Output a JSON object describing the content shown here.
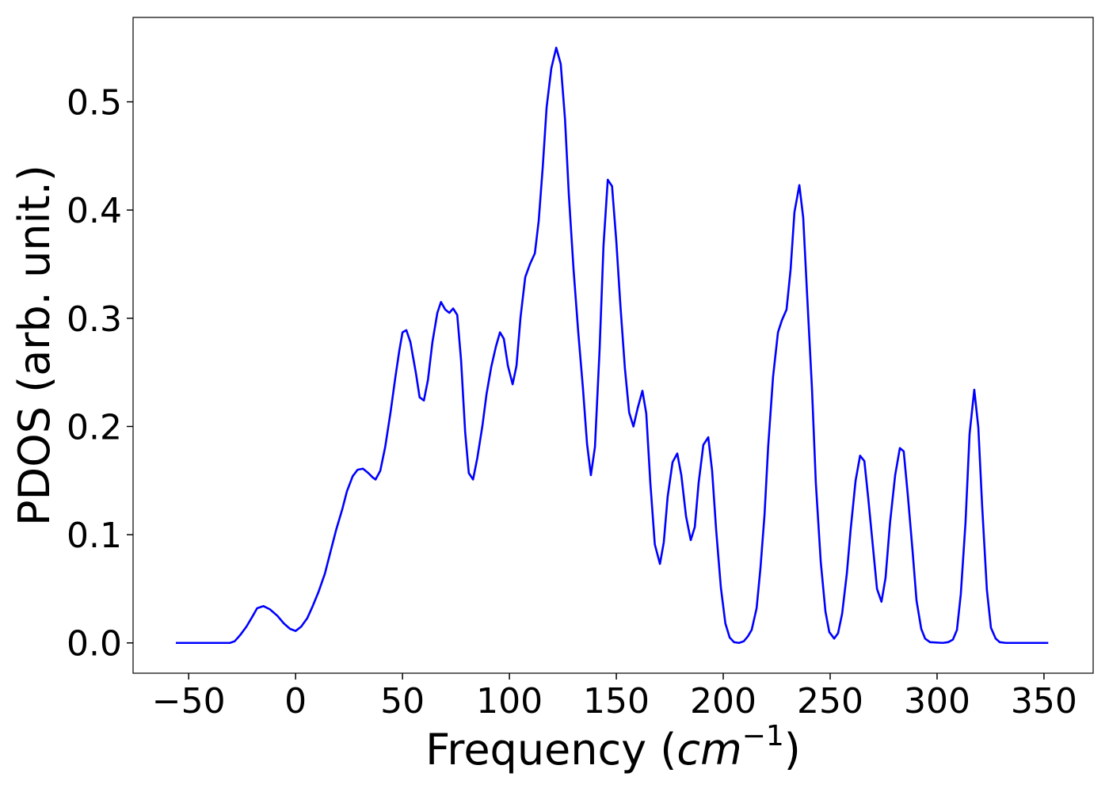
{
  "chart_data": {
    "type": "line",
    "xlabel": [
      "Frequency (",
      "cm",
      "−1",
      ")"
    ],
    "ylabel": "PDOS (arb. unit.)",
    "color": "#0000ff",
    "x": [
      -56,
      -30.7,
      -28.5,
      -26,
      -23,
      -20,
      -18,
      -15,
      -12,
      -8.5,
      -5.5,
      -2.6,
      0,
      2.6,
      5.5,
      8,
      10.7,
      13.7,
      16.3,
      18.9,
      21.9,
      24,
      26.7,
      29,
      31.5,
      34,
      36,
      37.4,
      39.6,
      41.9,
      44.4,
      46.7,
      48.5,
      50,
      51.8,
      53.7,
      56.3,
      58,
      60,
      61.9,
      64,
      66.3,
      68,
      70,
      71.9,
      73.7,
      75.6,
      77.4,
      79.3,
      81,
      83,
      85,
      87.4,
      89.3,
      91.5,
      93.7,
      95.6,
      97.4,
      99.3,
      101.5,
      103.3,
      105.2,
      107.4,
      109.6,
      111.9,
      113.7,
      115.6,
      117.4,
      119.6,
      121.9,
      124,
      126,
      127.8,
      130,
      132.2,
      134.4,
      136.3,
      138.1,
      140,
      142.2,
      144,
      146,
      148,
      150,
      151.9,
      154,
      156,
      158,
      160,
      162.2,
      164,
      165.9,
      168,
      170.4,
      172.2,
      174,
      176.3,
      178.5,
      180.4,
      182.6,
      184.8,
      186.7,
      188.5,
      190.7,
      193,
      194.8,
      196.7,
      198.9,
      201,
      203,
      205,
      207.4,
      209.6,
      211.5,
      213.3,
      215.6,
      217.4,
      219.3,
      221,
      223.3,
      225.6,
      227.4,
      229.6,
      231.5,
      233.3,
      235.6,
      237.4,
      239.3,
      241.5,
      243.3,
      245.6,
      247.8,
      249.6,
      251.9,
      253.7,
      255.6,
      257.8,
      259.6,
      261.9,
      264,
      266,
      267.8,
      270,
      271.9,
      274,
      275.9,
      278,
      280.4,
      282.6,
      284.4,
      286.3,
      288.5,
      290.4,
      292.6,
      294.4,
      296.7,
      302.6,
      305.2,
      307.4,
      309.3,
      311.1,
      313.3,
      315.2,
      317.4,
      319.3,
      321.1,
      323.3,
      325.2,
      327.4,
      329.3,
      332.2,
      352
    ],
    "values": [
      0,
      0,
      0.0015,
      0.007,
      0.015,
      0.025,
      0.032,
      0.034,
      0.031,
      0.025,
      0.018,
      0.013,
      0.011,
      0.015,
      0.023,
      0.034,
      0.047,
      0.064,
      0.084,
      0.104,
      0.124,
      0.14,
      0.154,
      0.16,
      0.161,
      0.157,
      0.153,
      0.151,
      0.159,
      0.181,
      0.213,
      0.246,
      0.27,
      0.287,
      0.289,
      0.278,
      0.249,
      0.227,
      0.224,
      0.243,
      0.278,
      0.305,
      0.315,
      0.308,
      0.305,
      0.309,
      0.303,
      0.261,
      0.195,
      0.157,
      0.151,
      0.171,
      0.201,
      0.23,
      0.255,
      0.274,
      0.287,
      0.281,
      0.256,
      0.239,
      0.256,
      0.301,
      0.338,
      0.35,
      0.36,
      0.39,
      0.44,
      0.495,
      0.531,
      0.55,
      0.535,
      0.484,
      0.414,
      0.345,
      0.287,
      0.235,
      0.184,
      0.155,
      0.181,
      0.272,
      0.367,
      0.428,
      0.422,
      0.371,
      0.312,
      0.254,
      0.213,
      0.2,
      0.217,
      0.233,
      0.212,
      0.148,
      0.091,
      0.073,
      0.093,
      0.135,
      0.167,
      0.175,
      0.155,
      0.117,
      0.095,
      0.107,
      0.148,
      0.183,
      0.19,
      0.159,
      0.104,
      0.051,
      0.018,
      0.005,
      0.0007,
      0,
      0.0015,
      0.006,
      0.012,
      0.032,
      0.069,
      0.118,
      0.181,
      0.246,
      0.287,
      0.298,
      0.308,
      0.345,
      0.398,
      0.423,
      0.393,
      0.319,
      0.235,
      0.148,
      0.075,
      0.029,
      0.01,
      0.004,
      0.009,
      0.027,
      0.064,
      0.105,
      0.15,
      0.173,
      0.168,
      0.134,
      0.089,
      0.05,
      0.038,
      0.06,
      0.111,
      0.155,
      0.18,
      0.177,
      0.137,
      0.086,
      0.039,
      0.013,
      0.004,
      0.0007,
      0,
      0.0007,
      0.003,
      0.012,
      0.045,
      0.111,
      0.193,
      0.234,
      0.199,
      0.126,
      0.049,
      0.014,
      0.004,
      0.0007,
      0,
      0
    ],
    "xlim": [
      -76,
      373
    ],
    "ylim": [
      -0.028,
      0.578
    ],
    "xticks": [
      {
        "value": -50,
        "label": "−50"
      },
      0,
      50,
      100,
      150,
      200,
      250,
      300,
      350
    ],
    "yticks": [
      {
        "value": 0,
        "label": "0.0"
      },
      0.1,
      0.2,
      0.3,
      0.4,
      0.5
    ]
  }
}
